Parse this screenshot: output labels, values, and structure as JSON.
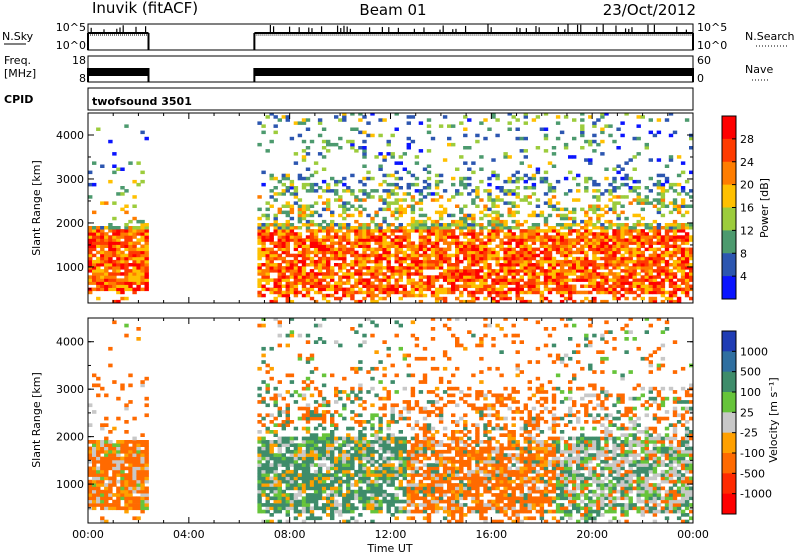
{
  "header": {
    "station": "Inuvik (fitACF)",
    "beam": "Beam 01",
    "date": "23/Oct/2012"
  },
  "strips": {
    "nsky_label": "N.Sky",
    "nsky_ticks": [
      "10^5",
      "10^0"
    ],
    "nsearch_label": "N.Search",
    "nsearch_ticks": [
      "10^5",
      "10^0"
    ],
    "freq_label_line1": "Freq.",
    "freq_label_line2": "[MHz]",
    "freq_ticks": [
      "18",
      "8"
    ],
    "nave_label": "Nave",
    "nave_ticks": [
      "60",
      "0"
    ],
    "cpid_label": "CPID",
    "cpid_value": "twofsound 3501"
  },
  "chart_data": [
    {
      "type": "heatmap",
      "panel": "power",
      "ylabel": "Slant Range [km]",
      "xlabel": "",
      "yticks": [
        "4000",
        "3000",
        "2000",
        "1000"
      ],
      "xticks": [
        "00:00",
        "04:00",
        "08:00",
        "12:00",
        "16:00",
        "20:00",
        "00:00"
      ],
      "xlim_hours": [
        0,
        24
      ],
      "ylim_km": [
        180,
        4500
      ],
      "data_gaps_hours": [
        [
          2.4,
          6.6
        ]
      ],
      "colorbar": {
        "label": "Power [dB]",
        "ticks": [
          "28",
          "24",
          "20",
          "16",
          "12",
          "8",
          "4"
        ],
        "colors": [
          "#ff0000",
          "#ff3b00",
          "#ff7d00",
          "#ffc000",
          "#9ccc3c",
          "#4c9a6e",
          "#2c56b0",
          "#0a14ff"
        ]
      }
    },
    {
      "type": "heatmap",
      "panel": "velocity",
      "ylabel": "Slant Range [km]",
      "xlabel": "Time UT",
      "yticks": [
        "4000",
        "3000",
        "2000",
        "1000"
      ],
      "xticks": [
        "00:00",
        "04:00",
        "08:00",
        "12:00",
        "16:00",
        "20:00",
        "00:00"
      ],
      "xlim_hours": [
        0,
        24
      ],
      "ylim_km": [
        180,
        4500
      ],
      "data_gaps_hours": [
        [
          2.4,
          6.6
        ]
      ],
      "colorbar": {
        "label": "Velocity [m s⁻¹]",
        "ticks": [
          "1000",
          "500",
          "100",
          "25",
          "-25",
          "-100",
          "-500",
          "-1000"
        ],
        "colors": [
          "#1f3cb4",
          "#2f6fa0",
          "#3e8c6a",
          "#66c43a",
          "#c8c8c8",
          "#ffa000",
          "#ff6a00",
          "#ff2a00",
          "#ff0000"
        ]
      }
    }
  ]
}
